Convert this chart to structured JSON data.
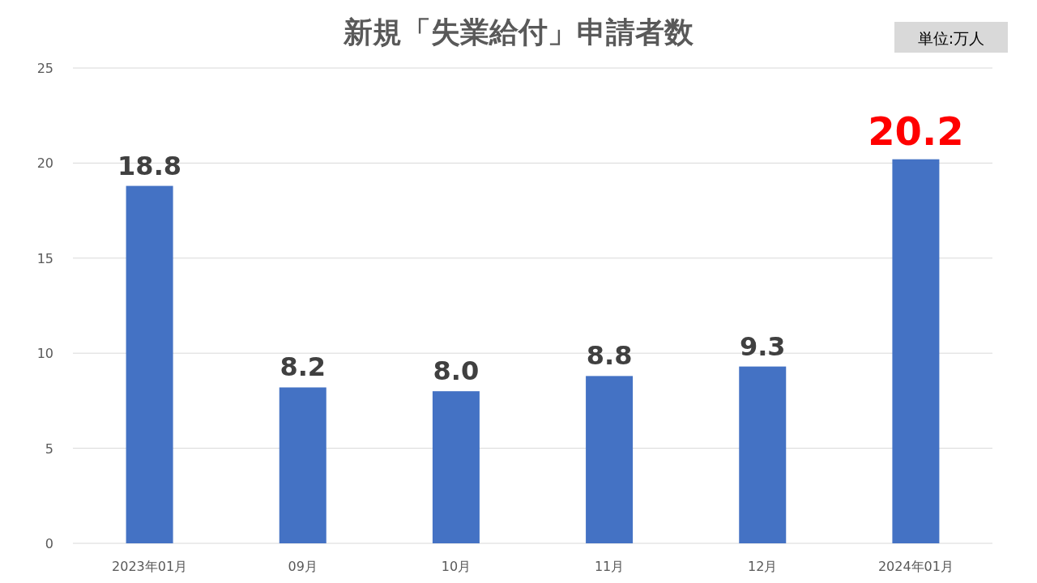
{
  "chart_data": {
    "type": "bar",
    "title": "新規「失業給付」申請者数",
    "annotations": [
      "単位:万人"
    ],
    "categories": [
      "2023年01月",
      "09月",
      "10月",
      "11月",
      "12月",
      "2024年01月"
    ],
    "values": [
      18.8,
      8.2,
      8.0,
      8.8,
      9.3,
      20.2
    ],
    "value_labels": [
      "18.8",
      "8.2",
      "8.0",
      "8.8",
      "9.3",
      "20.2"
    ],
    "color": "#4472c4",
    "ylim": [
      0,
      25
    ],
    "yticks": [
      0,
      5,
      10,
      15,
      20,
      25
    ],
    "grid": "y"
  }
}
